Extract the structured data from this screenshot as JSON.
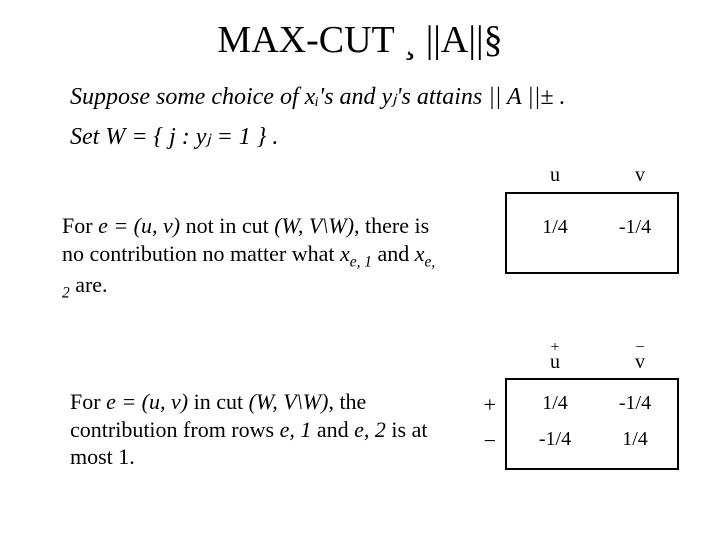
{
  "title": "MAX-CUT ¸ ||A||§",
  "supposition_line": "Suppose some choice of xᵢ's and yⱼ's attains || A ||± .",
  "setW_line": "Set W = { j : yⱼ = 1 } .",
  "para1": {
    "pre": "For ",
    "e_eq": "e = (u, v)",
    "mid1": " not in cut ",
    "cut": "(W, V\\W)",
    "mid2": ", there is no contribution no matter what ",
    "x1": "x",
    "x1_sub": "e, 1",
    "and": " and ",
    "x2": "x",
    "x2_sub": "e, 2",
    "post": " are."
  },
  "para2": {
    "pre": "For ",
    "e_eq": "e = (u, v)",
    "mid1": " in cut ",
    "cut": "(W, V\\W)",
    "mid2": ", the contribution from rows ",
    "r1": "e, 1",
    "and": " and ",
    "r2": "e, 2",
    "post": " is at most 1."
  },
  "table1": {
    "header_u": "u",
    "header_v": "v",
    "rows": [
      {
        "u": "1/4",
        "v": "-1/4"
      }
    ]
  },
  "table2": {
    "header_u_sign": "+",
    "header_u": "u",
    "header_v_sign": "−",
    "header_v": "v",
    "row_signs": [
      "+",
      "−"
    ],
    "rows": [
      {
        "u": "1/4",
        "v": "-1/4"
      },
      {
        "u": "-1/4",
        "v": "1/4"
      }
    ]
  }
}
